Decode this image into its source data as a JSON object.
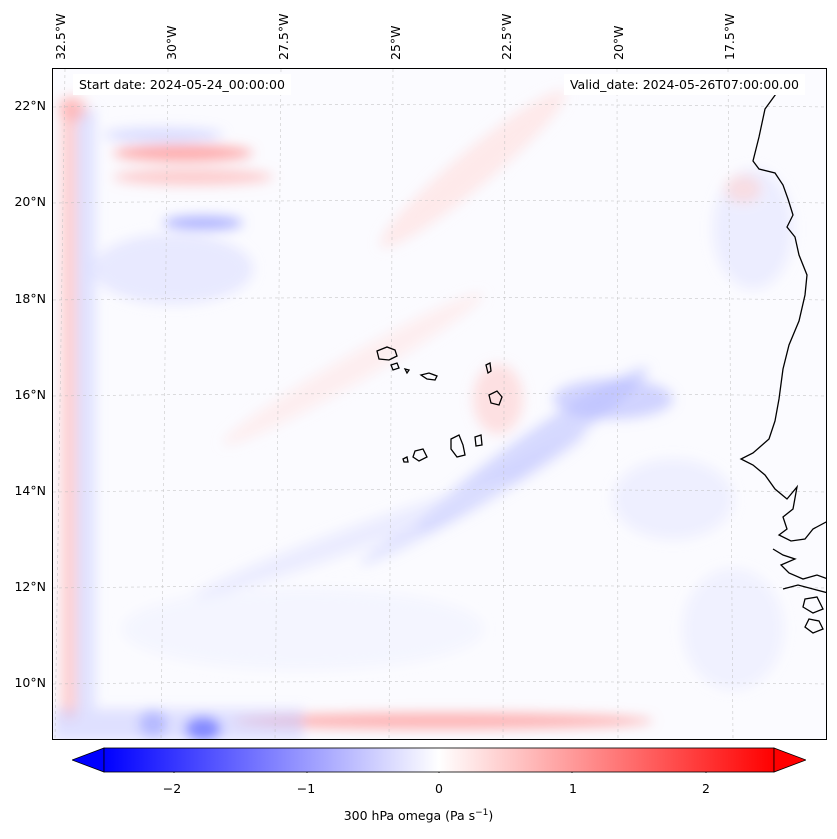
{
  "map": {
    "start_label": "Start date: 2024-05-24_00:00:00",
    "valid_label": "Valid_date: 2024-05-26T07:00:00.00",
    "lon_labels": [
      "32.5°W",
      "30°W",
      "27.5°W",
      "25°W",
      "22.5°W",
      "20°W",
      "17.5°W"
    ],
    "lat_labels": [
      "22°N",
      "20°N",
      "18°N",
      "16°N",
      "14°N",
      "12°N",
      "10°N"
    ],
    "colormap": "bwr",
    "colors": {
      "negative": "#0000ff",
      "zero": "#ffffff",
      "positive": "#ff0000",
      "coast": "#000000"
    }
  },
  "colorbar": {
    "ticks": [
      "−2",
      "−1",
      "0",
      "1",
      "2"
    ],
    "range": [
      -2.6,
      2.6
    ],
    "label_text": "300 hPa omega (Pa s",
    "label_exp": "−1",
    "label_close": ")"
  }
}
